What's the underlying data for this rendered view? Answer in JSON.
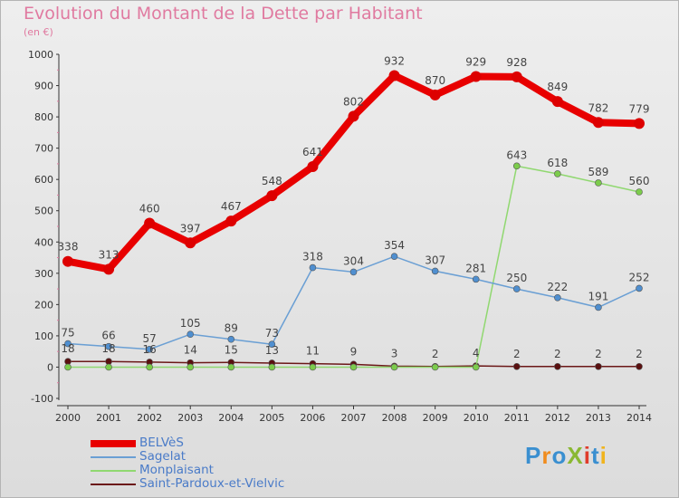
{
  "header": {
    "title": "Evolution du Montant de la Dette par Habitant",
    "subtitle": "(en €)"
  },
  "logo": {
    "text": "ProXiti",
    "colors": [
      "#3a8fd0",
      "#f08c1e",
      "#3a8fd0",
      "#8ab832",
      "#e03c2c",
      "#3a8fd0",
      "#f0b41e"
    ]
  },
  "chart_data": {
    "type": "line",
    "x": [
      "2000",
      "2001",
      "2002",
      "2003",
      "2004",
      "2005",
      "2006",
      "2007",
      "2008",
      "2009",
      "2010",
      "2011",
      "2012",
      "2013",
      "2014"
    ],
    "ylim": [
      -100,
      1000
    ],
    "yticks": [
      "-100",
      "0",
      "100",
      "200",
      "300",
      "400",
      "500",
      "600",
      "700",
      "800",
      "900",
      "1000"
    ],
    "ytick_values": [
      -100,
      0,
      100,
      200,
      300,
      400,
      500,
      600,
      700,
      800,
      900,
      1000
    ],
    "grid": false,
    "legend_position": "bottom-left",
    "series": [
      {
        "name": "BELVèS",
        "color": "#e80000",
        "marker_color": "#dd0000",
        "values": [
          338,
          313,
          460,
          397,
          467,
          548,
          641,
          802,
          932,
          870,
          929,
          928,
          849,
          782,
          779
        ],
        "labels": [
          "338",
          "313",
          "460",
          "397",
          "467",
          "548",
          "641",
          "802",
          "932",
          "870",
          "929",
          "928",
          "849",
          "782",
          "779"
        ]
      },
      {
        "name": "Sagelat",
        "color": "#6a9fd4",
        "marker_color": "#4f8fd0",
        "values": [
          75,
          66,
          57,
          105,
          89,
          73,
          318,
          304,
          354,
          307,
          281,
          250,
          222,
          191,
          252
        ],
        "labels": [
          "75",
          "66",
          "57",
          "105",
          "89",
          "73",
          "318",
          "304",
          "354",
          "307",
          "281",
          "250",
          "222",
          "191",
          "252"
        ]
      },
      {
        "name": "Monplaisant",
        "color": "#90d870",
        "marker_color": "#7ccc4c",
        "values": [
          0,
          0,
          0,
          0,
          0,
          0,
          0,
          0,
          0,
          0,
          0,
          643,
          618,
          589,
          560
        ],
        "labels": [
          "",
          "",
          "",
          "",
          "",
          "",
          "",
          "",
          "",
          "",
          "",
          "643",
          "618",
          "589",
          "560"
        ]
      },
      {
        "name": "Saint-Pardoux-et-Vielvic",
        "color": "#6b1818",
        "marker_color": "#5a1010",
        "values": [
          18,
          18,
          16,
          14,
          15,
          13,
          11,
          9,
          3,
          2,
          4,
          2,
          2,
          2,
          2
        ],
        "labels": [
          "18",
          "18",
          "16",
          "14",
          "15",
          "13",
          "11",
          "9",
          "3",
          "2",
          "4",
          "2",
          "2",
          "2",
          "2"
        ]
      }
    ]
  }
}
